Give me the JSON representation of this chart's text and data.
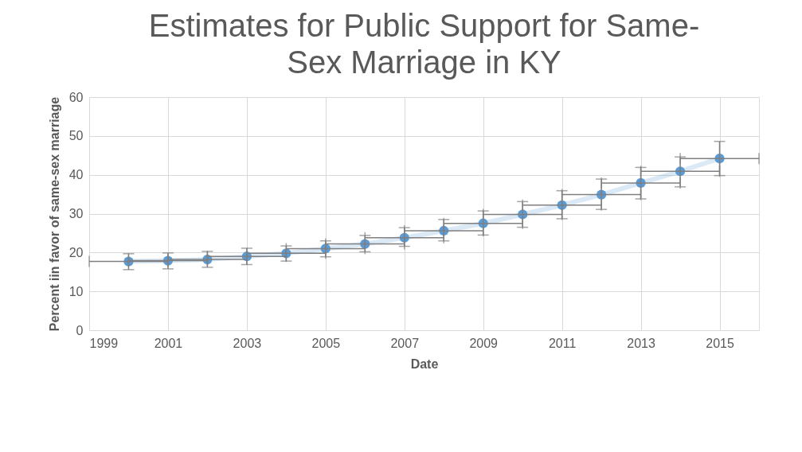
{
  "chart_data": {
    "type": "line",
    "title": "Estimates for Public Support for Same-Sex Marriage in KY",
    "xlabel": "Date",
    "ylabel": "Percent iin favor of same-sex marriage",
    "x": [
      2000,
      2001,
      2002,
      2003,
      2004,
      2005,
      2006,
      2007,
      2008,
      2009,
      2010,
      2011,
      2012,
      2013,
      2014,
      2015
    ],
    "series": [
      {
        "color": "#5b9bd5",
        "values": [
          17.7,
          17.9,
          18.2,
          19.0,
          19.8,
          21.0,
          22.2,
          23.8,
          25.6,
          27.5,
          29.8,
          32.2,
          34.9,
          37.9,
          40.9,
          44.2
        ],
        "errors": [
          [
            15.6,
            19.7
          ],
          [
            15.8,
            19.9
          ],
          [
            16.2,
            20.3
          ],
          [
            16.9,
            21.1
          ],
          [
            17.8,
            21.7
          ],
          [
            18.9,
            23.0
          ],
          [
            20.2,
            24.4
          ],
          [
            21.6,
            26.4
          ],
          [
            23.0,
            28.5
          ],
          [
            24.5,
            30.7
          ],
          [
            26.5,
            33.1
          ],
          [
            28.7,
            35.9
          ],
          [
            31.1,
            38.9
          ],
          [
            33.8,
            41.9
          ],
          [
            36.9,
            44.6
          ],
          [
            39.8,
            48.6
          ]
        ],
        "xerrors": [
          1,
          1,
          1,
          1,
          1,
          1,
          1,
          1,
          1,
          1,
          1,
          1,
          1,
          1,
          1,
          1
        ]
      }
    ],
    "xlim": [
      1999,
      2016
    ],
    "xticks": [
      1999,
      2001,
      2003,
      2005,
      2007,
      2009,
      2011,
      2013,
      2015
    ],
    "ylim": [
      0,
      60
    ],
    "yticks": [
      0,
      10,
      20,
      30,
      40,
      50,
      60
    ],
    "grid": true,
    "marker": "circle",
    "line_style": "solid"
  }
}
